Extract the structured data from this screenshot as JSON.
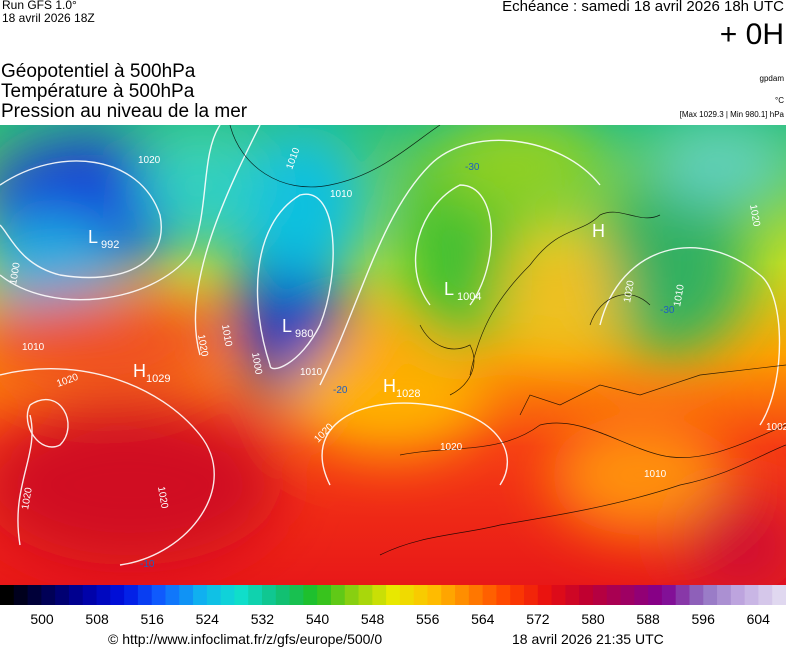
{
  "header": {
    "run": "Run GFS 1.0°",
    "run_date": "18 avril 2026 18Z",
    "echeance": "Echéance : samedi 18 avril 2026 18h UTC",
    "lead": "+ 0H",
    "titles": [
      "Géopotentiel à 500hPa",
      "Température à 500hPa",
      "Pression au niveau de la mer"
    ],
    "unit_geo": "gpdam",
    "unit_temp": "°C",
    "pressure_range": "[Max 1029.3 | Min 980.1] hPa"
  },
  "map": {
    "centers": [
      {
        "letter": "L",
        "value": "992"
      },
      {
        "letter": "L",
        "value": "980"
      },
      {
        "letter": "L",
        "value": "1004"
      },
      {
        "letter": "H",
        "value": "1029"
      },
      {
        "letter": "H",
        "value": "1028"
      },
      {
        "letter": "H",
        "value": null
      }
    ],
    "isobar_labels": [
      "1020",
      "1010",
      "1010",
      "1000",
      "1020",
      "1010",
      "1000",
      "1010",
      "1020",
      "1020",
      "1020",
      "1020",
      "1010",
      "1020",
      "1020",
      "1010",
      "1020",
      "1002",
      "1010"
    ],
    "temperature_labels": [
      "-30",
      "-20",
      "-30",
      "-10"
    ]
  },
  "colorbar": {
    "ticks": [
      500,
      508,
      516,
      524,
      532,
      540,
      548,
      556,
      564,
      572,
      580,
      588,
      596,
      604
    ]
  },
  "footer": {
    "url": "© http://www.infoclimat.fr/z/gfs/europe/500/0",
    "timestamp": "18 avril 2026 21:35 UTC"
  }
}
